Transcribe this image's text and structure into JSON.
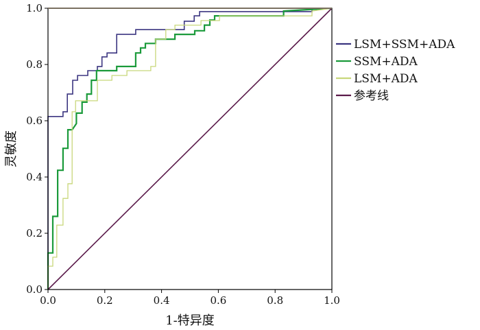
{
  "chart_data": {
    "type": "line",
    "title": "",
    "xlabel": "1-特异度",
    "ylabel": "灵敏度",
    "xlim": [
      0,
      1
    ],
    "ylim": [
      0,
      1
    ],
    "xticks": [
      "0.0",
      "0.2",
      "0.4",
      "0.6",
      "0.8",
      "1.0"
    ],
    "yticks": [
      "0.0",
      "0.2",
      "0.4",
      "0.6",
      "0.8",
      "1.0"
    ],
    "grid": false,
    "legend_position": "right",
    "series": [
      {
        "name": "LSM+SSM+ADA",
        "color": "#3b3580",
        "width": 1.6,
        "x": [
          0,
          0,
          0.053,
          0.053,
          0.068,
          0.068,
          0.087,
          0.087,
          0.104,
          0.104,
          0.14,
          0.14,
          0.174,
          0.174,
          0.19,
          0.19,
          0.208,
          0.208,
          0.242,
          0.242,
          0.309,
          0.309,
          0.48,
          0.48,
          0.515,
          0.515,
          0.534,
          0.534,
          0.93,
          0.93,
          1.0
        ],
        "y": [
          0,
          0.615,
          0.615,
          0.632,
          0.632,
          0.695,
          0.695,
          0.744,
          0.744,
          0.761,
          0.761,
          0.778,
          0.778,
          0.793,
          0.793,
          0.827,
          0.827,
          0.841,
          0.841,
          0.907,
          0.907,
          0.924,
          0.924,
          0.954,
          0.954,
          0.973,
          0.973,
          0.988,
          0.988,
          1.0,
          1.0
        ]
      },
      {
        "name": "SSM+ADA",
        "color": "#1a9a3a",
        "width": 2.2,
        "x": [
          0,
          0,
          0.017,
          0.017,
          0.034,
          0.034,
          0.053,
          0.053,
          0.07,
          0.07,
          0.085,
          0.1,
          0.1,
          0.12,
          0.12,
          0.137,
          0.137,
          0.153,
          0.153,
          0.171,
          0.171,
          0.242,
          0.242,
          0.309,
          0.309,
          0.326,
          0.326,
          0.343,
          0.343,
          0.379,
          0.379,
          0.447,
          0.447,
          0.517,
          0.517,
          0.551,
          0.551,
          0.57,
          0.57,
          0.587,
          0.587,
          0.83,
          0.83,
          1.0
        ],
        "y": [
          0,
          0.13,
          0.13,
          0.26,
          0.26,
          0.424,
          0.424,
          0.502,
          0.502,
          0.568,
          0.568,
          0.59,
          0.627,
          0.627,
          0.666,
          0.666,
          0.695,
          0.695,
          0.744,
          0.744,
          0.778,
          0.778,
          0.793,
          0.793,
          0.841,
          0.841,
          0.859,
          0.859,
          0.875,
          0.875,
          0.89,
          0.89,
          0.907,
          0.907,
          0.92,
          0.92,
          0.94,
          0.94,
          0.958,
          0.958,
          0.973,
          0.973,
          0.99,
          1.0
        ]
      },
      {
        "name": "LSM+ADA",
        "color": "#c8d77a",
        "width": 1.3,
        "x": [
          0,
          0,
          0.017,
          0.017,
          0.031,
          0.031,
          0.053,
          0.053,
          0.07,
          0.07,
          0.085,
          0.085,
          0.097,
          0.097,
          0.174,
          0.174,
          0.225,
          0.225,
          0.278,
          0.278,
          0.362,
          0.362,
          0.379,
          0.379,
          0.415,
          0.415,
          0.447,
          0.447,
          0.539,
          0.539,
          0.604,
          0.604,
          0.93,
          0.93,
          1.0
        ],
        "y": [
          0,
          0.083,
          0.083,
          0.115,
          0.115,
          0.229,
          0.229,
          0.324,
          0.324,
          0.376,
          0.376,
          0.632,
          0.632,
          0.671,
          0.671,
          0.744,
          0.744,
          0.761,
          0.761,
          0.778,
          0.778,
          0.793,
          0.793,
          0.89,
          0.89,
          0.924,
          0.924,
          0.94,
          0.94,
          0.956,
          0.956,
          0.973,
          0.973,
          0.99,
          1.0
        ]
      },
      {
        "name": "参考线",
        "color": "#5a1a4a",
        "width": 1.6,
        "x": [
          0,
          1
        ],
        "y": [
          0,
          1
        ]
      }
    ]
  }
}
